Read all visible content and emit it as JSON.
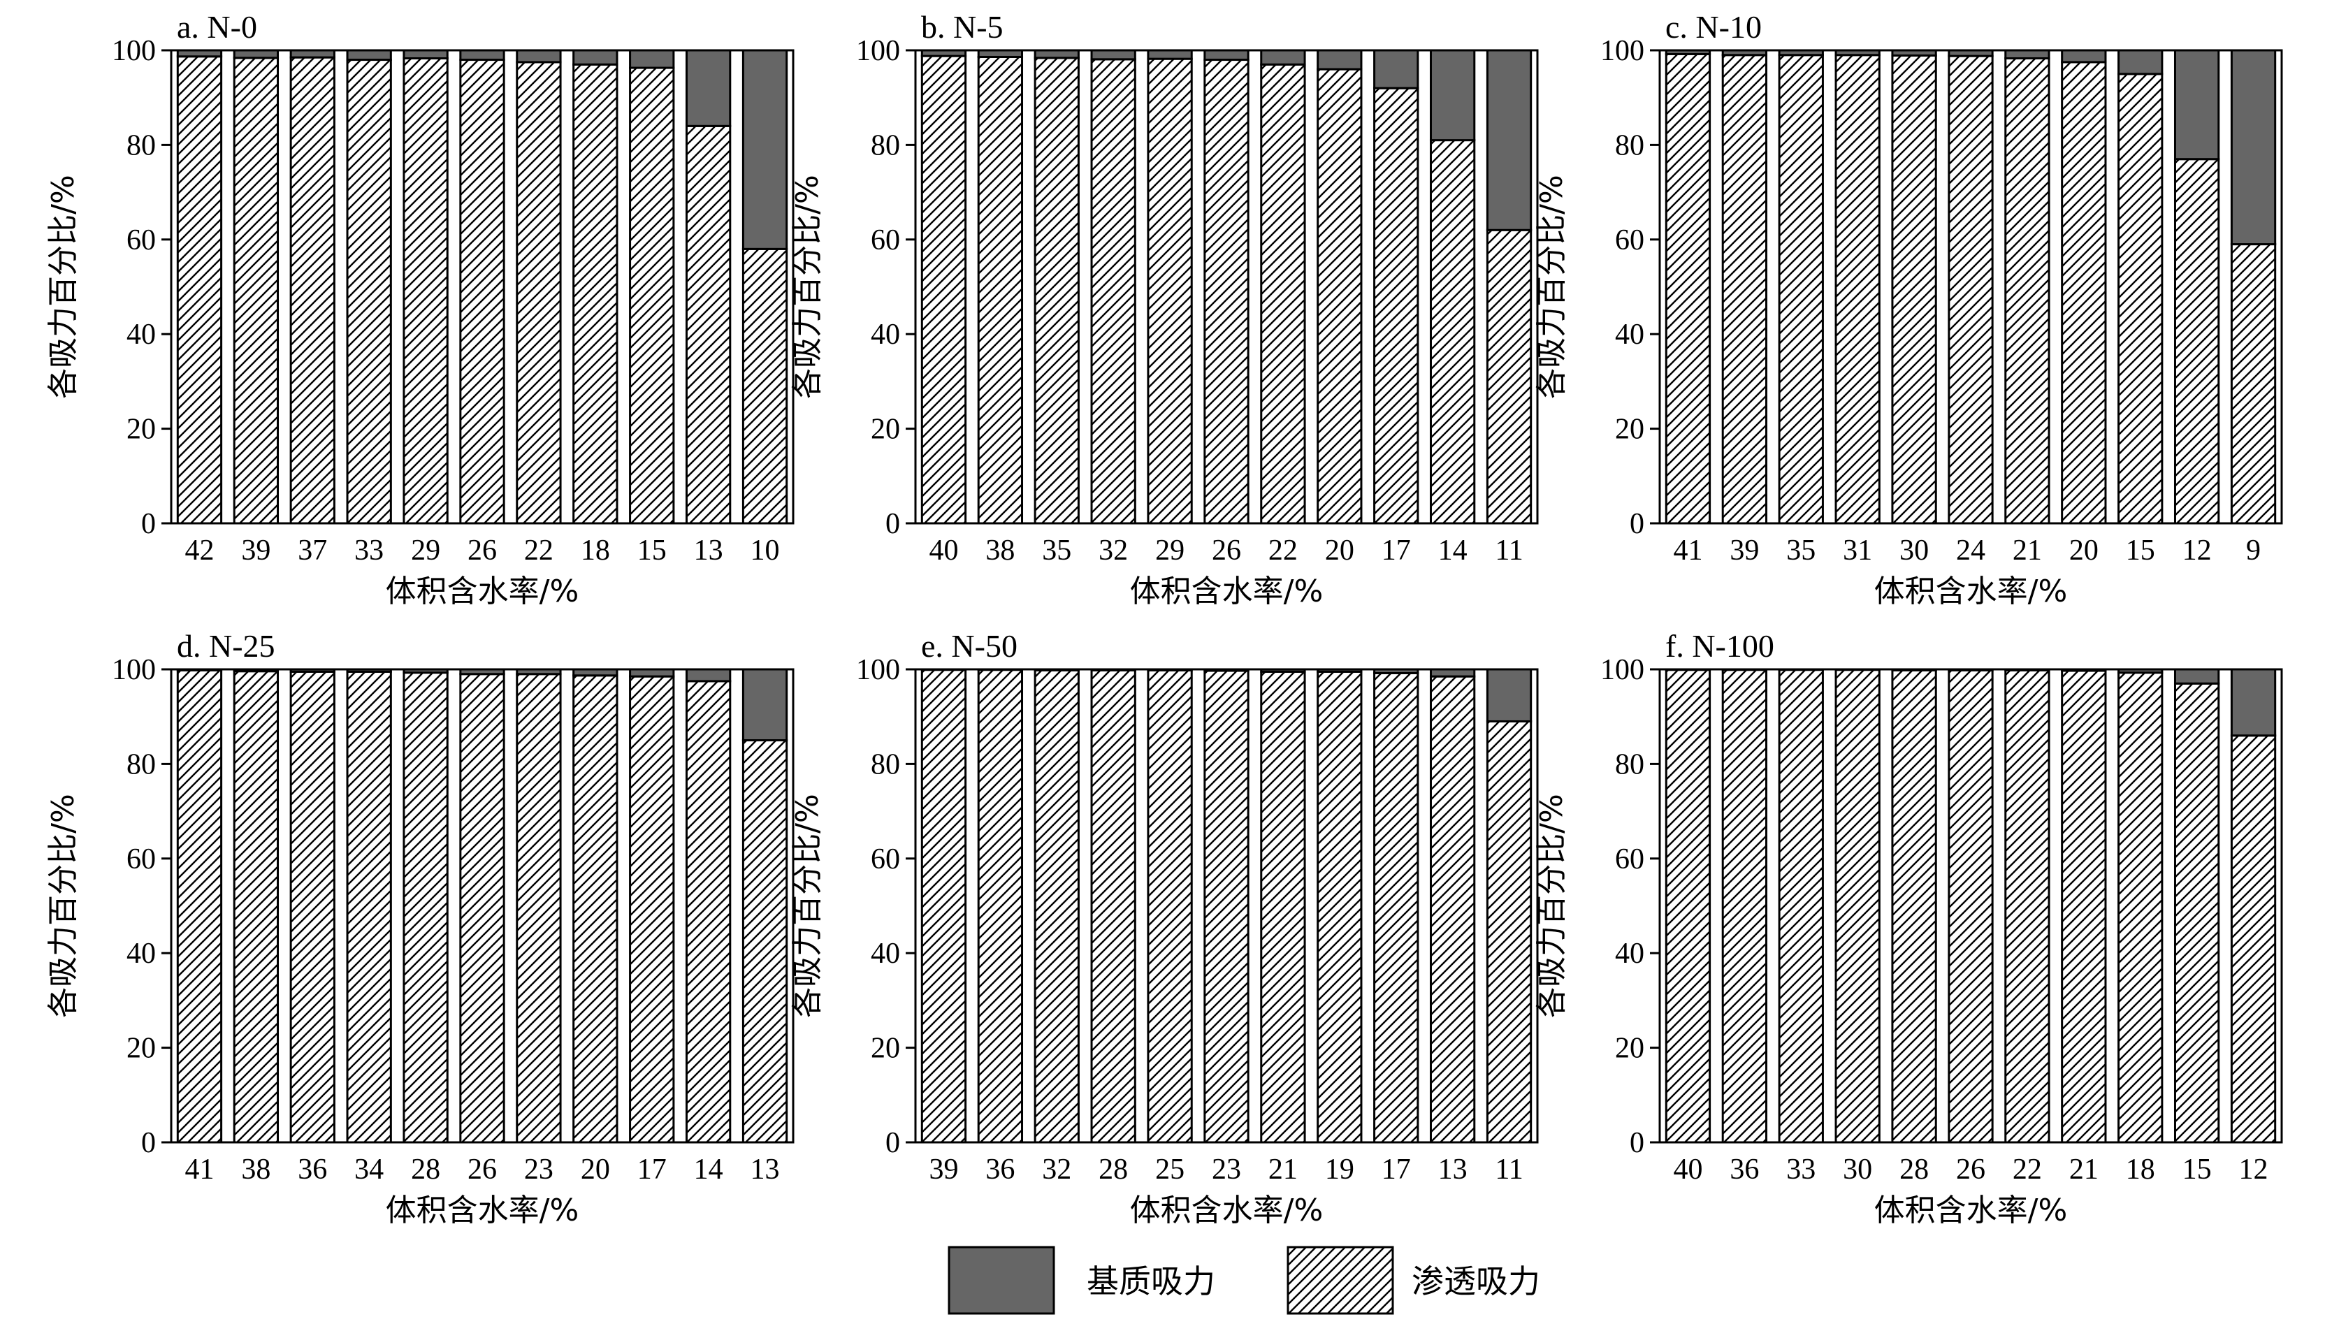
{
  "chart_data": [
    {
      "type": "bar",
      "title": "a. N-0",
      "xlabel": "体积含水率/%",
      "ylabel": "各吸力百分比/%",
      "ylim": [
        0,
        100
      ],
      "yticks": [
        "0",
        "20",
        "40",
        "60",
        "80",
        "100"
      ],
      "categories": [
        "42",
        "39",
        "37",
        "33",
        "29",
        "26",
        "22",
        "18",
        "15",
        "13",
        "10"
      ],
      "series": [
        {
          "name": "渗透吸力",
          "values": [
            98.7,
            98.4,
            98.5,
            98.0,
            98.3,
            98.0,
            97.5,
            97.0,
            96.3,
            84.0,
            58.0
          ]
        },
        {
          "name": "基质吸力",
          "values": [
            1.3,
            1.6,
            1.5,
            2.0,
            1.7,
            2.0,
            2.5,
            3.0,
            3.7,
            16.0,
            42.0
          ]
        }
      ]
    },
    {
      "type": "bar",
      "title": "b. N-5",
      "xlabel": "体积含水率/%",
      "ylabel": "各吸力百分比/%",
      "ylim": [
        0,
        100
      ],
      "yticks": [
        "0",
        "20",
        "40",
        "60",
        "80",
        "100"
      ],
      "categories": [
        "40",
        "38",
        "35",
        "32",
        "29",
        "26",
        "22",
        "20",
        "17",
        "14",
        "11"
      ],
      "series": [
        {
          "name": "渗透吸力",
          "values": [
            98.8,
            98.6,
            98.4,
            98.1,
            98.2,
            98.0,
            97.0,
            96.0,
            92.0,
            81.0,
            62.0
          ]
        },
        {
          "name": "基质吸力",
          "values": [
            1.2,
            1.4,
            1.6,
            1.9,
            1.8,
            2.0,
            3.0,
            4.0,
            8.0,
            19.0,
            38.0
          ]
        }
      ]
    },
    {
      "type": "bar",
      "title": "c. N-10",
      "xlabel": "体积含水率/%",
      "ylabel": "各吸力百分比/%",
      "ylim": [
        0,
        100
      ],
      "yticks": [
        "0",
        "20",
        "40",
        "60",
        "80",
        "100"
      ],
      "categories": [
        "41",
        "39",
        "35",
        "31",
        "30",
        "24",
        "21",
        "20",
        "15",
        "12",
        "9"
      ],
      "series": [
        {
          "name": "渗透吸力",
          "values": [
            99.2,
            99.0,
            99.0,
            99.0,
            98.9,
            98.8,
            98.3,
            97.5,
            95.0,
            77.0,
            59.0
          ]
        },
        {
          "name": "基质吸力",
          "values": [
            0.8,
            1.0,
            1.0,
            1.0,
            1.1,
            1.2,
            1.7,
            2.5,
            5.0,
            23.0,
            41.0
          ]
        }
      ]
    },
    {
      "type": "bar",
      "title": "d. N-25",
      "xlabel": "体积含水率/%",
      "ylabel": "各吸力百分比/%",
      "ylim": [
        0,
        100
      ],
      "yticks": [
        "0",
        "20",
        "40",
        "60",
        "80",
        "100"
      ],
      "categories": [
        "41",
        "38",
        "36",
        "34",
        "28",
        "26",
        "23",
        "20",
        "17",
        "14",
        "13"
      ],
      "series": [
        {
          "name": "渗透吸力",
          "values": [
            99.8,
            99.6,
            99.5,
            99.5,
            99.3,
            99.0,
            99.0,
            98.7,
            98.5,
            97.5,
            85.0
          ]
        },
        {
          "name": "基质吸力",
          "values": [
            0.2,
            0.4,
            0.5,
            0.5,
            0.7,
            1.0,
            1.0,
            1.3,
            1.5,
            2.5,
            15.0
          ]
        }
      ]
    },
    {
      "type": "bar",
      "title": "e. N-50",
      "xlabel": "体积含水率/%",
      "ylabel": "各吸力百分比/%",
      "ylim": [
        0,
        100
      ],
      "yticks": [
        "0",
        "20",
        "40",
        "60",
        "80",
        "100"
      ],
      "categories": [
        "39",
        "36",
        "32",
        "28",
        "25",
        "23",
        "21",
        "19",
        "17",
        "13",
        "11"
      ],
      "series": [
        {
          "name": "渗透吸力",
          "values": [
            99.9,
            99.9,
            99.8,
            99.8,
            99.8,
            99.7,
            99.5,
            99.5,
            99.2,
            98.5,
            89.0
          ]
        },
        {
          "name": "基质吸力",
          "values": [
            0.1,
            0.1,
            0.2,
            0.2,
            0.2,
            0.3,
            0.5,
            0.5,
            0.8,
            1.5,
            11.0
          ]
        }
      ]
    },
    {
      "type": "bar",
      "title": "f. N-100",
      "xlabel": "体积含水率/%",
      "ylabel": "各吸力百分比/%",
      "ylim": [
        0,
        100
      ],
      "yticks": [
        "0",
        "20",
        "40",
        "60",
        "80",
        "100"
      ],
      "categories": [
        "40",
        "36",
        "33",
        "30",
        "28",
        "26",
        "22",
        "21",
        "18",
        "15",
        "12"
      ],
      "series": [
        {
          "name": "渗透吸力",
          "values": [
            99.9,
            99.9,
            99.9,
            99.9,
            99.8,
            99.8,
            99.8,
            99.7,
            99.3,
            97.0,
            86.0
          ]
        },
        {
          "name": "基质吸力",
          "values": [
            0.1,
            0.1,
            0.1,
            0.1,
            0.2,
            0.2,
            0.2,
            0.3,
            0.7,
            3.0,
            14.0
          ]
        }
      ]
    }
  ],
  "legend": {
    "placement": "bottom-center",
    "items": [
      {
        "label": "基质吸力",
        "fill": "solid"
      },
      {
        "label": "渗透吸力",
        "fill": "hatched"
      }
    ]
  },
  "colors": {
    "matric_fill": "#666666",
    "bar_stroke": "#000000",
    "hatch_stroke": "#000000",
    "background": "#ffffff"
  }
}
